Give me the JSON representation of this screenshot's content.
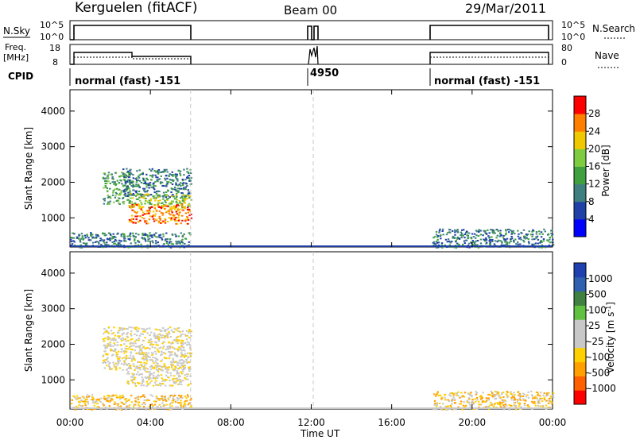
{
  "header": {
    "station": "Kerguelen (fitACF)",
    "beam": "Beam 00",
    "date": "29/Mar/2011"
  },
  "nsky_panel": {
    "left_label": "N.Sky",
    "right_label": "N.Search",
    "left_ticks": [
      "10^5",
      "10^0"
    ],
    "right_ticks": [
      "10^5",
      "10^0"
    ]
  },
  "freq_panel": {
    "left_label_1": "Freq.",
    "left_label_2": "[MHz]",
    "right_label": "Nave",
    "left_ticks": [
      "18",
      "8"
    ],
    "right_ticks": [
      "80",
      "0"
    ]
  },
  "cpid_panel": {
    "label": "CPID",
    "entries": [
      "normal (fast) -151",
      "4950",
      "normal (fast) -151"
    ]
  },
  "colors": {
    "power": [
      "#0000ff",
      "#2040a8",
      "#3f7f7f",
      "#40a040",
      "#80cc40",
      "#f0c800",
      "#ff8000",
      "#ff0000"
    ],
    "velocity": [
      "#ff0000",
      "#ff6000",
      "#ffa000",
      "#ffd000",
      "#c8c8c8",
      "#c8c8c8",
      "#60c040",
      "#408040",
      "#3060b0",
      "#2040b0"
    ],
    "background": "#ffffff",
    "dashed_line": "#c8c8c8"
  },
  "chart_data": [
    {
      "type": "heatmap",
      "name": "power",
      "ylabel": "Slant Range [km]",
      "ylim": [
        180,
        4600
      ],
      "yticks": [
        1000,
        2000,
        3000,
        4000
      ],
      "colorbar_label": "Power [dB]",
      "colorbar_ticks": [
        "4",
        "8",
        "12",
        "16",
        "20",
        "24",
        "28"
      ],
      "colorbar_range": [
        0,
        32
      ],
      "regions": [
        {
          "t0": 0.0,
          "t1": 6.0,
          "r0": 180,
          "r1": 600,
          "level": 2
        },
        {
          "t0": 1.6,
          "t1": 3.0,
          "r0": 1400,
          "r1": 2300,
          "level": 3
        },
        {
          "t0": 2.6,
          "t1": 6.0,
          "r0": 1600,
          "r1": 2400,
          "level": 2
        },
        {
          "t0": 2.8,
          "t1": 6.0,
          "r0": 1300,
          "r1": 1700,
          "level": 4
        },
        {
          "t0": 2.9,
          "t1": 6.0,
          "r0": 850,
          "r1": 1400,
          "level": 6
        },
        {
          "t0": 18.0,
          "t1": 24.0,
          "r0": 180,
          "r1": 700,
          "level": 2
        }
      ]
    },
    {
      "type": "heatmap",
      "name": "velocity",
      "ylabel": "Slant Range [km]",
      "ylim": [
        180,
        4600
      ],
      "yticks": [
        1000,
        2000,
        3000,
        4000
      ],
      "colorbar_label": "Velocity [m s^-1]",
      "colorbar_ticks": [
        "1000",
        "500",
        "100",
        "25",
        "-25",
        "-100",
        "-500",
        "-1000"
      ],
      "regions": [
        {
          "t0": 0.0,
          "t1": 6.0,
          "r0": 180,
          "r1": 600,
          "level": 3
        },
        {
          "t0": 1.6,
          "t1": 6.0,
          "r0": 1300,
          "r1": 2500,
          "level": 4
        },
        {
          "t0": 2.8,
          "t1": 6.0,
          "r0": 850,
          "r1": 1400,
          "level": 4
        },
        {
          "t0": 18.0,
          "t1": 24.0,
          "r0": 180,
          "r1": 700,
          "level": 3
        }
      ]
    }
  ],
  "time_axis": {
    "label": "Time UT",
    "ticks": [
      "00:00",
      "04:00",
      "08:00",
      "12:00",
      "16:00",
      "20:00",
      "00:00"
    ],
    "tick_hours": [
      0,
      4,
      8,
      12,
      16,
      20,
      24
    ],
    "dashed_hours": [
      6,
      12.1
    ]
  }
}
